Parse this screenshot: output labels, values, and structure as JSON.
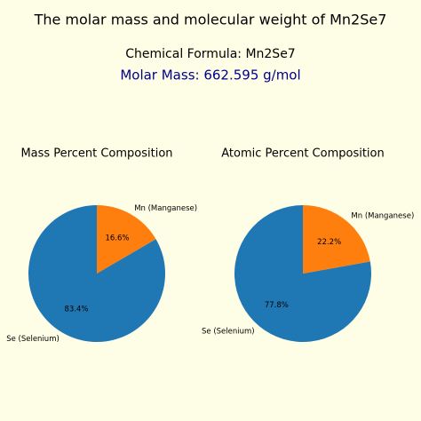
{
  "header": {
    "title": "The molar mass and molecular weight of Mn2Se7",
    "formula": "Chemical Formula: Mn2Se7",
    "molar_mass": "Molar Mass: 662.595 g/mol"
  },
  "chart_data": [
    {
      "type": "pie",
      "title": "Mass Percent Composition",
      "categories": [
        "Mn (Manganese)",
        "Se (Selenium)"
      ],
      "values": [
        16.6,
        83.4
      ],
      "value_labels": [
        "16.6%",
        "83.4%"
      ],
      "colors": [
        "#ff7f0e",
        "#1f77b4"
      ]
    },
    {
      "type": "pie",
      "title": "Atomic Percent Composition",
      "categories": [
        "Mn (Manganese)",
        "Se (Selenium)"
      ],
      "values": [
        22.2,
        77.8
      ],
      "value_labels": [
        "22.2%",
        "77.8%"
      ],
      "colors": [
        "#ff7f0e",
        "#1f77b4"
      ]
    }
  ]
}
